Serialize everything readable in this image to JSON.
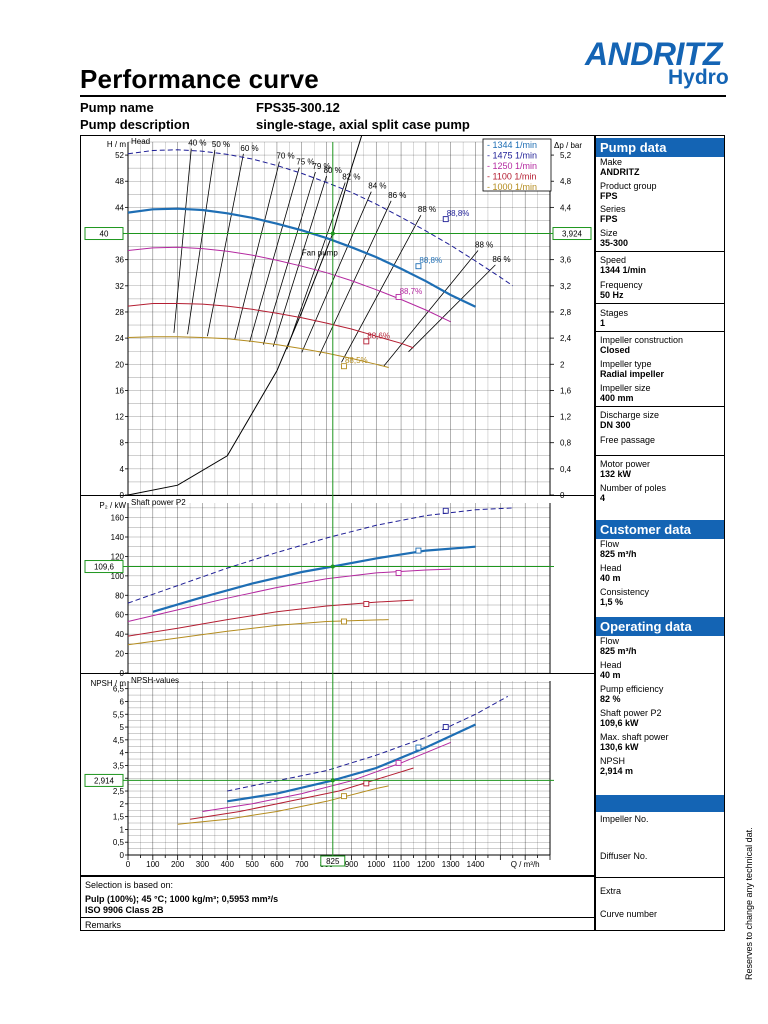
{
  "header": {
    "title": "Performance curve",
    "logo_line1": "ANDRITZ",
    "logo_line2": "Hydro",
    "pump_name_label": "Pump name",
    "pump_name_value": "FPS35-300.12",
    "pump_desc_label": "Pump description",
    "pump_desc_value": "single-stage, axial split case pump"
  },
  "panel": {
    "pump_data": {
      "title": "Pump data",
      "make_label": "Make",
      "make": "ANDRITZ",
      "group_label": "Product group",
      "group": "FPS",
      "series_label": "Series",
      "series": "FPS",
      "size_label": "Size",
      "size": "35-300",
      "speed_label": "Speed",
      "speed": "1344 1/min",
      "freq_label": "Frequency",
      "freq": "50 Hz",
      "stages_label": "Stages",
      "stages": "1",
      "imp_con_label": "Impeller construction",
      "imp_con": "Closed",
      "imp_type_label": "Impeller type",
      "imp_type": "Radial impeller",
      "imp_size_label": "Impeller size",
      "imp_size": "400 mm",
      "discharge_label": "Discharge size",
      "discharge": "DN 300",
      "free_label": "Free passage",
      "motor_label": "Motor power",
      "motor": "132 kW",
      "poles_label": "Number of poles",
      "poles": "4"
    },
    "customer_data": {
      "title": "Customer data",
      "flow_label": "Flow",
      "flow": "825 m³/h",
      "head_label": "Head",
      "head": "40 m",
      "consistency_label": "Consistency",
      "consistency": "1,5 %"
    },
    "operating_data": {
      "title": "Operating data",
      "flow_label": "Flow",
      "flow": "825 m³/h",
      "head_label": "Head",
      "head": "40 m",
      "eff_label": "Pump efficiency",
      "eff": "82 %",
      "p2_label": "Shaft power P2",
      "p2": "109,6 kW",
      "maxp_label": "Max. shaft power",
      "maxp": "130,6 kW",
      "npsh_label": "NPSH",
      "npsh": "2,914 m"
    },
    "impeller_no_label": "Impeller No.",
    "diffuser_no_label": "Diffuser No.",
    "extra_label": "Extra",
    "curve_no_label": "Curve number"
  },
  "bottom": {
    "selection_label": "Selection is based on:",
    "selection_line1": "Pulp (100%); 45 °C; 1000 kg/m³; 0,5953 mm²/s",
    "selection_line2": "ISO 9906 Class 2B",
    "remarks_label": "Remarks"
  },
  "side_note": "Reserves to change any technical dat.",
  "colors": {
    "s1344": "#1e6eb4",
    "s1475": "#1e1e96",
    "s1250": "#b428a0",
    "s1100": "#b41e32",
    "s1000": "#b48c1e",
    "grid": "#000000",
    "operating": "#1e961e",
    "brand": "#1464b4"
  },
  "chart_data": {
    "type": "line",
    "x_axis": {
      "label": "Q / m³/h",
      "range": [
        0,
        1700
      ],
      "ticks": [
        "0",
        "100",
        "200",
        "300",
        "400",
        "500",
        "600",
        "700",
        "800",
        "900",
        "1000",
        "1100",
        "1200",
        "1300",
        "1400"
      ]
    },
    "operating_point": {
      "flow": 825,
      "flow_label": "825",
      "head": 40,
      "head_label": "40",
      "dp_label": "3,924",
      "power": 109.6,
      "power_label": "109,6",
      "npsh": 2.914,
      "npsh_label": "2,914"
    },
    "legend": [
      "1344 1/min",
      "1475 1/min",
      "1250 1/min",
      "1100 1/min",
      "1000 1/min"
    ],
    "head": {
      "title": "Head",
      "ylabel": "H / m",
      "ylabel2": "Δp / bar",
      "range": [
        0,
        54
      ],
      "ticks": [
        "0",
        "4",
        "8",
        "12",
        "16",
        "20",
        "24",
        "28",
        "32",
        "36",
        "40",
        "44",
        "48",
        "52"
      ],
      "ticks2": [
        "0",
        "0,4",
        "0,8",
        "1,2",
        "1,6",
        "2",
        "2,4",
        "2,8",
        "3,2",
        "3,6",
        "4",
        "4,4",
        "4,8",
        "5,2"
      ],
      "system_label": "Fan pump",
      "system_curve": [
        [
          0,
          0
        ],
        [
          200,
          1.5
        ],
        [
          400,
          6
        ],
        [
          600,
          19
        ],
        [
          700,
          28
        ],
        [
          825,
          40
        ],
        [
          900,
          50
        ],
        [
          1000,
          62
        ]
      ],
      "series": [
        {
          "speed": 1475,
          "dashed": true,
          "eff_label": "88,8%",
          "eff_point": [
            1280,
            42.2
          ],
          "points": [
            [
              0,
              52.2
            ],
            [
              100,
              52.7
            ],
            [
              200,
              52.8
            ],
            [
              300,
              52.6
            ],
            [
              400,
              52.1
            ],
            [
              500,
              51.4
            ],
            [
              600,
              50.4
            ],
            [
              700,
              49.2
            ],
            [
              800,
              47.8
            ],
            [
              900,
              46.3
            ],
            [
              1000,
              44.5
            ],
            [
              1100,
              42.5
            ],
            [
              1200,
              40.4
            ],
            [
              1300,
              38.2
            ],
            [
              1400,
              35.8
            ],
            [
              1500,
              33.3
            ],
            [
              1550,
              32
            ]
          ]
        },
        {
          "speed": 1344,
          "dashed": false,
          "eff_label": "88,8%",
          "eff_point": [
            1170,
            35
          ],
          "points": [
            [
              0,
              43.2
            ],
            [
              100,
              43.7
            ],
            [
              200,
              43.8
            ],
            [
              300,
              43.6
            ],
            [
              400,
              43.1
            ],
            [
              500,
              42.4
            ],
            [
              600,
              41.5
            ],
            [
              700,
              40.5
            ],
            [
              800,
              39.3
            ],
            [
              900,
              37.9
            ],
            [
              1000,
              36.4
            ],
            [
              1100,
              34.6
            ],
            [
              1200,
              32.7
            ],
            [
              1300,
              30.6
            ],
            [
              1400,
              28.8
            ]
          ]
        },
        {
          "speed": 1250,
          "dashed": false,
          "eff_label": "88,7%",
          "eff_point": [
            1090,
            30.3
          ],
          "points": [
            [
              0,
              37.4
            ],
            [
              100,
              37.8
            ],
            [
              200,
              37.9
            ],
            [
              300,
              37.7
            ],
            [
              400,
              37.3
            ],
            [
              500,
              36.7
            ],
            [
              600,
              35.9
            ],
            [
              700,
              35
            ],
            [
              800,
              34
            ],
            [
              900,
              32.8
            ],
            [
              1000,
              31.4
            ],
            [
              1100,
              29.9
            ],
            [
              1200,
              28.3
            ],
            [
              1300,
              26.5
            ]
          ]
        },
        {
          "speed": 1100,
          "dashed": false,
          "eff_label": "88,6%",
          "eff_point": [
            960,
            23.5
          ],
          "points": [
            [
              0,
              28.9
            ],
            [
              100,
              29.3
            ],
            [
              200,
              29.3
            ],
            [
              300,
              29.2
            ],
            [
              400,
              28.9
            ],
            [
              500,
              28.4
            ],
            [
              600,
              27.8
            ],
            [
              700,
              27.1
            ],
            [
              800,
              26.3
            ],
            [
              900,
              25.4
            ],
            [
              1000,
              24.3
            ],
            [
              1100,
              23.2
            ],
            [
              1150,
              22.5
            ]
          ]
        },
        {
          "speed": 1000,
          "dashed": false,
          "eff_label": "88,5%",
          "eff_point": [
            870,
            19.7
          ],
          "points": [
            [
              0,
              24.1
            ],
            [
              100,
              24.2
            ],
            [
              200,
              24.2
            ],
            [
              300,
              24.1
            ],
            [
              400,
              23.9
            ],
            [
              500,
              23.5
            ],
            [
              600,
              23
            ],
            [
              700,
              22.4
            ],
            [
              800,
              21.7
            ],
            [
              900,
              20.9
            ],
            [
              1000,
              20
            ],
            [
              1050,
              19.5
            ]
          ]
        }
      ],
      "iso_efficiency": [
        {
          "label": "40 %",
          "top": [
            255,
            53
          ],
          "bottom": [
            185,
            24.8
          ]
        },
        {
          "label": "50 %",
          "top": [
            350,
            52.8
          ],
          "bottom": [
            240,
            24.6
          ]
        },
        {
          "label": "60 %",
          "top": [
            465,
            52.2
          ],
          "bottom": [
            320,
            24.3
          ]
        },
        {
          "label": "70 %",
          "top": [
            610,
            51
          ],
          "bottom": [
            430,
            23.8
          ]
        },
        {
          "label": "75 %",
          "top": [
            690,
            50.1
          ],
          "bottom": [
            490,
            23.4
          ]
        },
        {
          "label": "79 %",
          "top": [
            755,
            49.4
          ],
          "bottom": [
            545,
            23
          ]
        },
        {
          "label": "80 %",
          "top": [
            800,
            48.8
          ],
          "bottom": [
            585,
            22.7
          ]
        },
        {
          "label": "82 %",
          "top": [
            875,
            47.8
          ],
          "bottom": [
            640,
            22.3
          ]
        },
        {
          "label": "84 %",
          "top": [
            980,
            46.4
          ],
          "bottom": [
            700,
            21.8
          ]
        },
        {
          "label": "86 %",
          "top": [
            1060,
            45
          ],
          "bottom": [
            770,
            21.3
          ]
        },
        {
          "label": "88 %",
          "top": [
            1180,
            42.8
          ],
          "bottom": [
            860,
            20.3
          ]
        },
        {
          "label": "88 %",
          "top": [
            1410,
            37.4
          ],
          "bottom": [
            1030,
            19.7
          ]
        },
        {
          "label": "86 %",
          "top": [
            1480,
            35.2
          ],
          "bottom": [
            1130,
            21.9
          ]
        }
      ]
    },
    "power": {
      "title": "Shaft power P2",
      "ylabel": "P₂ / kW",
      "range": [
        0,
        175
      ],
      "ticks": [
        "0",
        "20",
        "40",
        "60",
        "80",
        "100",
        "120",
        "140",
        "160"
      ],
      "series": [
        {
          "speed": 1475,
          "dashed": true,
          "mark": [
            1280,
            167
          ],
          "points": [
            [
              0,
              72
            ],
            [
              200,
              90
            ],
            [
              400,
              108
            ],
            [
              600,
              124
            ],
            [
              800,
              139
            ],
            [
              1000,
              152
            ],
            [
              1200,
              162
            ],
            [
              1400,
              168
            ],
            [
              1550,
              170
            ]
          ]
        },
        {
          "speed": 1344,
          "dashed": false,
          "mark": [
            1170,
            126
          ],
          "points": [
            [
              100,
              63
            ],
            [
              300,
              78
            ],
            [
              500,
              92
            ],
            [
              700,
              104
            ],
            [
              825,
              109.6
            ],
            [
              1000,
              118
            ],
            [
              1200,
              126
            ],
            [
              1400,
              130
            ]
          ]
        },
        {
          "speed": 1250,
          "dashed": false,
          "mark": [
            1090,
            103
          ],
          "points": [
            [
              0,
              53
            ],
            [
              200,
              65
            ],
            [
              400,
              77
            ],
            [
              600,
              88
            ],
            [
              800,
              97
            ],
            [
              1000,
              103
            ],
            [
              1200,
              106
            ],
            [
              1300,
              107
            ]
          ]
        },
        {
          "speed": 1100,
          "dashed": false,
          "mark": [
            960,
            71
          ],
          "points": [
            [
              0,
              38
            ],
            [
              200,
              46
            ],
            [
              400,
              55
            ],
            [
              600,
              63
            ],
            [
              800,
              69
            ],
            [
              1000,
              73
            ],
            [
              1150,
              75
            ]
          ]
        },
        {
          "speed": 1000,
          "dashed": false,
          "mark": [
            870,
            53
          ],
          "points": [
            [
              0,
              29
            ],
            [
              200,
              36
            ],
            [
              400,
              43
            ],
            [
              600,
              49
            ],
            [
              800,
              53
            ],
            [
              1050,
              55
            ]
          ]
        }
      ]
    },
    "npsh": {
      "title": "NPSH-values",
      "ylabel": "NPSH / m",
      "range": [
        0,
        6.8
      ],
      "ticks": [
        "0",
        "0,5",
        "1",
        "1,5",
        "2",
        "2,5",
        "3",
        "3,5",
        "4",
        "4,5",
        "5",
        "5,5",
        "6",
        "6,5"
      ],
      "series": [
        {
          "speed": 1475,
          "dashed": true,
          "mark": [
            1280,
            5
          ],
          "points": [
            [
              400,
              2.5
            ],
            [
              600,
              2.9
            ],
            [
              800,
              3.3
            ],
            [
              1000,
              3.9
            ],
            [
              1200,
              4.6
            ],
            [
              1400,
              5.5
            ],
            [
              1530,
              6.2
            ]
          ]
        },
        {
          "speed": 1344,
          "dashed": false,
          "mark": [
            1170,
            4.2
          ],
          "points": [
            [
              400,
              2.1
            ],
            [
              600,
              2.4
            ],
            [
              825,
              2.914
            ],
            [
              1000,
              3.4
            ],
            [
              1200,
              4.2
            ],
            [
              1400,
              5.1
            ]
          ]
        },
        {
          "speed": 1250,
          "dashed": false,
          "mark": [
            1090,
            3.6
          ],
          "points": [
            [
              300,
              1.7
            ],
            [
              500,
              2
            ],
            [
              700,
              2.4
            ],
            [
              900,
              2.9
            ],
            [
              1100,
              3.6
            ],
            [
              1300,
              4.4
            ]
          ]
        },
        {
          "speed": 1100,
          "dashed": false,
          "mark": [
            960,
            2.8
          ],
          "points": [
            [
              250,
              1.4
            ],
            [
              450,
              1.7
            ],
            [
              650,
              2.1
            ],
            [
              850,
              2.5
            ],
            [
              1050,
              3.1
            ],
            [
              1150,
              3.4
            ]
          ]
        },
        {
          "speed": 1000,
          "dashed": false,
          "mark": [
            870,
            2.3
          ],
          "points": [
            [
              200,
              1.2
            ],
            [
              400,
              1.4
            ],
            [
              600,
              1.7
            ],
            [
              800,
              2.1
            ],
            [
              1000,
              2.6
            ],
            [
              1050,
              2.7
            ]
          ]
        }
      ]
    }
  }
}
